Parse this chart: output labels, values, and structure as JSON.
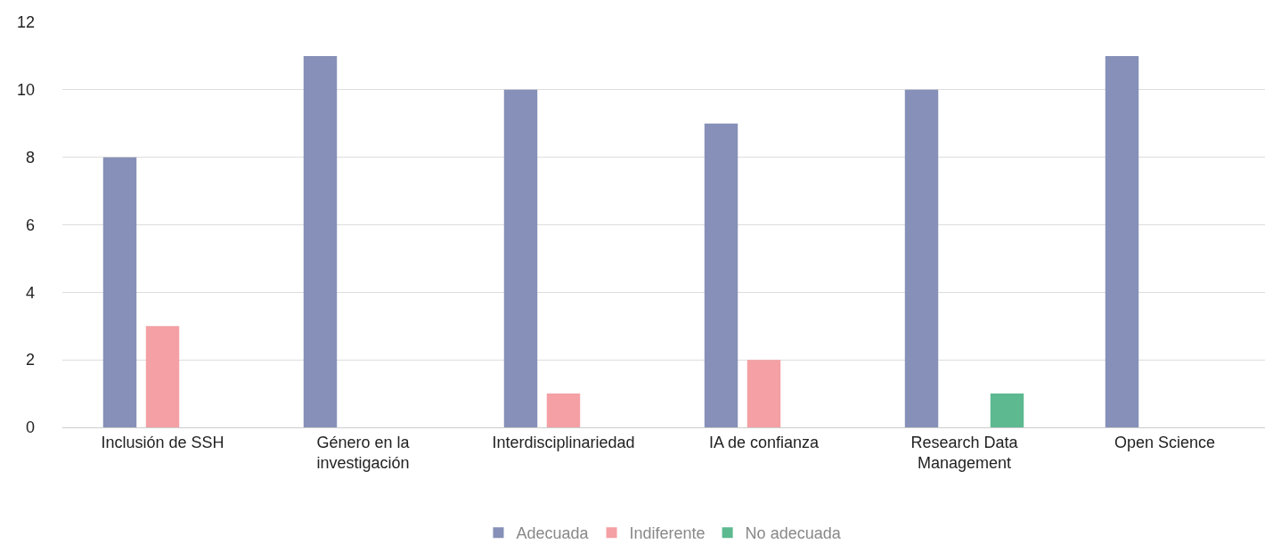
{
  "chart_data": {
    "type": "bar",
    "categories": [
      "Inclusión de SSH",
      "Género en la investigación",
      "Interdisciplinariedad",
      "IA de confianza",
      "Research Data Management",
      "Open Science"
    ],
    "series": [
      {
        "name": "Adecuada",
        "color": "#8690b8",
        "values": [
          8,
          11,
          10,
          9,
          10,
          11
        ]
      },
      {
        "name": "Indiferente",
        "color": "#f4a0a4",
        "values": [
          3,
          0,
          1,
          2,
          0,
          0
        ]
      },
      {
        "name": "No adecuada",
        "color": "#5cb990",
        "values": [
          0,
          0,
          0,
          0,
          1,
          0
        ]
      }
    ],
    "ylim": [
      0,
      12
    ],
    "yticks": [
      0,
      2,
      4,
      6,
      8,
      10,
      12
    ],
    "grid": "y",
    "legend": "bottom"
  }
}
